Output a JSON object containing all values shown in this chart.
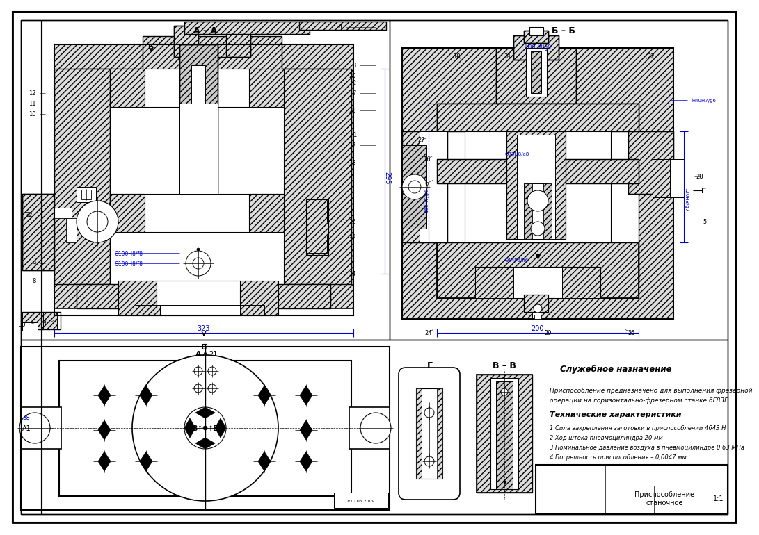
{
  "bg_color": "#ffffff",
  "blue": "#0000cd",
  "black": "#000000",
  "gray_hatch": "#cccccc",
  "title_block_name": "Приспособление\nстаночное",
  "title_block_scale": "1:1",
  "service_purpose_title": "Служебное назначение",
  "service_purpose_text1": "Приспособление предназначено для выполнения фрезерной",
  "service_purpose_text2": "операции на горизонтально-фрезерном станке 6Г83Г",
  "tech_chars_title": "Технические характеристики",
  "tech_chars": [
    "1 Сила закрепления заготовки в приспособлении 4643 Н",
    "2 Ход штока пневмоцилиндра 20 мм",
    "3 Номинальное давление воздуха в пневмоцилиндре 0,63 МПа",
    "4 Погрешность приспособления – 0,0047 мм"
  ],
  "lbl_AA": "А – А",
  "lbl_BB": "Б – Б",
  "lbl_VV": "В – В",
  "lbl_G": "Г",
  "dim_295": "295",
  "dim_323": "323",
  "dim_200": "200",
  "dim_bb_h": "160H7/g6",
  "dim_bb_v": "120H8/g7",
  "dim_bb_inner": "Θ33H8/e8",
  "dim_bb_inner2": "Θ14P6/h6",
  "dim_bb_top": "Ή80H8/g9",
  "dim_bb_right": "Ή40H7/g6",
  "dim_aa_d1": "Θ100H8/f8",
  "dim_aa_d2": "Θ100H8/f8"
}
